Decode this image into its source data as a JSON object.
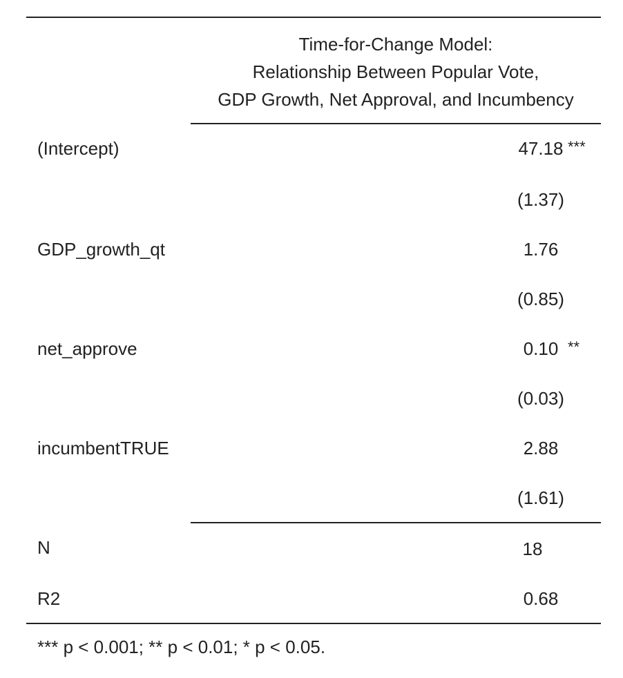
{
  "table": {
    "model_title_lines": [
      "Time-for-Change Model:",
      "Relationship Between Popular Vote,",
      "GDP Growth, Net Approval, and Incumbency"
    ],
    "coefficients": [
      {
        "label": "(Intercept)",
        "estimate": "47.18",
        "stars": "***",
        "se": "(1.37)"
      },
      {
        "label": "GDP_growth_qt",
        "estimate": "1.76",
        "stars": "",
        "se": "(0.85)"
      },
      {
        "label": "net_approve",
        "estimate": "0.10",
        "stars": "**",
        "se": "(0.03)"
      },
      {
        "label": "incumbentTRUE",
        "estimate": "2.88",
        "stars": "",
        "se": "(1.61)"
      }
    ],
    "stats": [
      {
        "label": "N",
        "value": "18"
      },
      {
        "label": "R2",
        "value": "0.68"
      }
    ],
    "footnote": "*** p < 0.001; ** p < 0.01; * p < 0.05."
  }
}
